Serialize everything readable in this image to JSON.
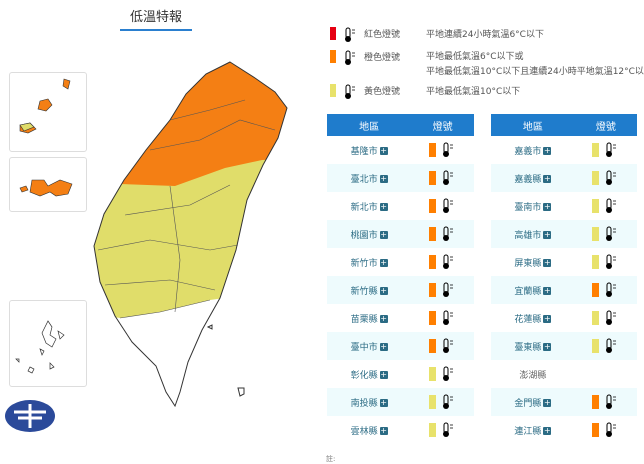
{
  "title": "低溫特報",
  "colors": {
    "red": "#e60012",
    "orange": "#ff7f00",
    "yellow": "#e8e26b",
    "header": "#1f7ccc"
  },
  "legend": [
    {
      "name": "紅色燈號",
      "color": "#e60012",
      "desc": [
        "平地連續24小時氣溫6°C以下"
      ]
    },
    {
      "name": "橙色燈號",
      "color": "#ff7f00",
      "desc": [
        "平地最低氣溫6°C以下或",
        "平地最低氣溫10°C以下且連續24小時平地氣溫12°C以下"
      ]
    },
    {
      "name": "黃色燈號",
      "color": "#e8e26b",
      "desc": [
        "平地最低氣溫10°C以下"
      ]
    }
  ],
  "table": {
    "col_region": "地區",
    "col_light": "燈號",
    "left": [
      {
        "region": "基隆市",
        "level": "orange"
      },
      {
        "region": "臺北市",
        "level": "orange"
      },
      {
        "region": "新北市",
        "level": "orange"
      },
      {
        "region": "桃園市",
        "level": "orange"
      },
      {
        "region": "新竹市",
        "level": "orange"
      },
      {
        "region": "新竹縣",
        "level": "orange"
      },
      {
        "region": "苗栗縣",
        "level": "orange"
      },
      {
        "region": "臺中市",
        "level": "orange"
      },
      {
        "region": "彰化縣",
        "level": "yellow"
      },
      {
        "region": "南投縣",
        "level": "yellow"
      },
      {
        "region": "雲林縣",
        "level": "yellow"
      }
    ],
    "right": [
      {
        "region": "嘉義市",
        "level": "yellow"
      },
      {
        "region": "嘉義縣",
        "level": "yellow"
      },
      {
        "region": "臺南市",
        "level": "yellow"
      },
      {
        "region": "高雄市",
        "level": "yellow"
      },
      {
        "region": "屏東縣",
        "level": "yellow"
      },
      {
        "region": "宜蘭縣",
        "level": "orange"
      },
      {
        "region": "花蓮縣",
        "level": "yellow"
      },
      {
        "region": "臺東縣",
        "level": "yellow"
      },
      {
        "region": "澎湖縣",
        "level": "none"
      },
      {
        "region": "金門縣",
        "level": "orange"
      },
      {
        "region": "連江縣",
        "level": "orange"
      }
    ]
  },
  "note": "註:"
}
